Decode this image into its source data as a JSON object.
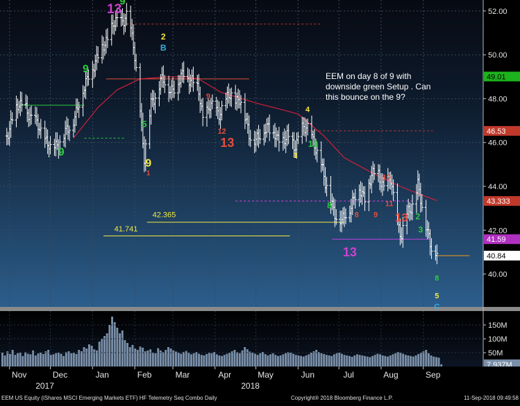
{
  "chart_data": {
    "type": "line",
    "price_panel": {
      "ylim": [
        38.5,
        52.5
      ],
      "y_ticks": [
        "52.00",
        "50.00",
        "48.00",
        "46.00",
        "44.00",
        "42.00",
        "40.00"
      ],
      "grid": true,
      "close_series": [
        {
          "x": "2017-10-30",
          "y": 46.3
        },
        {
          "x": "2017-11-03",
          "y": 47.2
        },
        {
          "x": "2017-11-08",
          "y": 47.6
        },
        {
          "x": "2017-11-13",
          "y": 47.7
        },
        {
          "x": "2017-11-17",
          "y": 47.0
        },
        {
          "x": "2017-11-22",
          "y": 46.8
        },
        {
          "x": "2017-11-27",
          "y": 46.2
        },
        {
          "x": "2017-12-01",
          "y": 45.6
        },
        {
          "x": "2017-12-06",
          "y": 46.0
        },
        {
          "x": "2017-12-11",
          "y": 46.3
        },
        {
          "x": "2017-12-15",
          "y": 46.6
        },
        {
          "x": "2017-12-20",
          "y": 47.5
        },
        {
          "x": "2017-12-26",
          "y": 48.4
        },
        {
          "x": "2017-12-29",
          "y": 49.2
        },
        {
          "x": "2018-01-04",
          "y": 49.7
        },
        {
          "x": "2018-01-10",
          "y": 50.6
        },
        {
          "x": "2018-01-16",
          "y": 51.3
        },
        {
          "x": "2018-01-22",
          "y": 51.6
        },
        {
          "x": "2018-01-26",
          "y": 51.8
        },
        {
          "x": "2018-01-31",
          "y": 50.4
        },
        {
          "x": "2018-02-05",
          "y": 47.6
        },
        {
          "x": "2018-02-08",
          "y": 45.2
        },
        {
          "x": "2018-02-13",
          "y": 47.8
        },
        {
          "x": "2018-02-20",
          "y": 48.8
        },
        {
          "x": "2018-02-27",
          "y": 48.5
        },
        {
          "x": "2018-03-05",
          "y": 48.6
        },
        {
          "x": "2018-03-09",
          "y": 49.2
        },
        {
          "x": "2018-03-14",
          "y": 48.9
        },
        {
          "x": "2018-03-20",
          "y": 48.3
        },
        {
          "x": "2018-03-23",
          "y": 47.2
        },
        {
          "x": "2018-03-28",
          "y": 47.6
        },
        {
          "x": "2018-04-04",
          "y": 47.4
        },
        {
          "x": "2018-04-12",
          "y": 48.1
        },
        {
          "x": "2018-04-19",
          "y": 48.0
        },
        {
          "x": "2018-04-26",
          "y": 46.4
        },
        {
          "x": "2018-05-03",
          "y": 46.1
        },
        {
          "x": "2018-05-10",
          "y": 46.9
        },
        {
          "x": "2018-05-17",
          "y": 46.0
        },
        {
          "x": "2018-05-24",
          "y": 46.4
        },
        {
          "x": "2018-05-29",
          "y": 45.6
        },
        {
          "x": "2018-06-04",
          "y": 46.8
        },
        {
          "x": "2018-06-08",
          "y": 46.5
        },
        {
          "x": "2018-06-13",
          "y": 46.0
        },
        {
          "x": "2018-06-18",
          "y": 45.0
        },
        {
          "x": "2018-06-21",
          "y": 44.0
        },
        {
          "x": "2018-06-26",
          "y": 43.3
        },
        {
          "x": "2018-06-29",
          "y": 42.6
        },
        {
          "x": "2018-07-03",
          "y": 42.3
        },
        {
          "x": "2018-07-06",
          "y": 42.8
        },
        {
          "x": "2018-07-11",
          "y": 43.3
        },
        {
          "x": "2018-07-16",
          "y": 43.8
        },
        {
          "x": "2018-07-20",
          "y": 43.6
        },
        {
          "x": "2018-07-25",
          "y": 44.4
        },
        {
          "x": "2018-07-30",
          "y": 44.6
        },
        {
          "x": "2018-08-03",
          "y": 44.0
        },
        {
          "x": "2018-08-08",
          "y": 44.2
        },
        {
          "x": "2018-08-13",
          "y": 42.5
        },
        {
          "x": "2018-08-16",
          "y": 41.7
        },
        {
          "x": "2018-08-21",
          "y": 42.8
        },
        {
          "x": "2018-08-24",
          "y": 43.2
        },
        {
          "x": "2018-08-28",
          "y": 44.1
        },
        {
          "x": "2018-08-31",
          "y": 42.9
        },
        {
          "x": "2018-09-05",
          "y": 41.8
        },
        {
          "x": "2018-09-07",
          "y": 41.3
        },
        {
          "x": "2018-09-11",
          "y": 40.84
        }
      ],
      "moving_average": [
        {
          "x": "2017-12-18",
          "y": 46.2
        },
        {
          "x": "2018-01-05",
          "y": 47.6
        },
        {
          "x": "2018-01-19",
          "y": 48.4
        },
        {
          "x": "2018-02-05",
          "y": 48.9
        },
        {
          "x": "2018-02-26",
          "y": 49.0
        },
        {
          "x": "2018-03-10",
          "y": 49.0
        },
        {
          "x": "2018-03-20",
          "y": 48.9
        },
        {
          "x": "2018-04-05",
          "y": 48.3
        },
        {
          "x": "2018-05-01",
          "y": 47.8
        },
        {
          "x": "2018-05-20",
          "y": 47.5
        },
        {
          "x": "2018-06-01",
          "y": 47.3
        },
        {
          "x": "2018-06-20",
          "y": 46.3
        },
        {
          "x": "2018-07-05",
          "y": 45.3
        },
        {
          "x": "2018-07-20",
          "y": 44.8
        },
        {
          "x": "2018-08-01",
          "y": 44.4
        },
        {
          "x": "2018-08-15",
          "y": 44.0
        },
        {
          "x": "2018-08-31",
          "y": 43.6
        },
        {
          "x": "2018-09-11",
          "y": 43.35
        }
      ],
      "horizontal_lines": [
        {
          "y": 51.4,
          "x0": "2018-01-26",
          "x1": "2018-06-18",
          "color": "#c0392b",
          "dash": true
        },
        {
          "y": 48.9,
          "x0": "2018-01-11",
          "x1": "2018-04-26",
          "color": "#e74c3c",
          "dash": false
        },
        {
          "y": 47.7,
          "x0": "2017-11-08",
          "x1": "2017-12-26",
          "color": "#2ecc40",
          "dash": false
        },
        {
          "y": 46.2,
          "x0": "2017-12-26",
          "x1": "2018-01-24",
          "color": "#2ecc40",
          "dash": true
        },
        {
          "y": 46.53,
          "x0": "2018-06-04",
          "x1": "2018-09-08",
          "color": "#c0392b",
          "dash": true
        },
        {
          "y": 43.333,
          "x0": "2018-04-16",
          "x1": "2018-08-24",
          "color": "#e040e0",
          "dash": true
        },
        {
          "y": 42.365,
          "x0": "2018-02-10",
          "x1": "2018-07-05",
          "color": "#f4e842",
          "dash": false
        },
        {
          "y": 41.741,
          "x0": "2018-01-09",
          "x1": "2018-05-26",
          "color": "#f4e842",
          "dash": false
        },
        {
          "y": 41.59,
          "x0": "2018-06-26",
          "x1": "2018-09-06",
          "color": "#c040e0",
          "dash": false
        },
        {
          "y": 40.84,
          "x0": "2018-09-11",
          "x1": "2018-10-05",
          "color": "#f39c12",
          "dash": false
        }
      ],
      "level_labels": [
        {
          "text": "42.365",
          "x": "2018-02-14",
          "y": 42.6,
          "color": "#f4e842"
        },
        {
          "text": "41.741",
          "x": "2018-01-17",
          "y": 41.95,
          "color": "#f4e842"
        }
      ],
      "right_price_labels": [
        {
          "text": "49.01",
          "value": 49.01,
          "bg": "#1db31d",
          "fg": "#000000"
        },
        {
          "text": "46.53",
          "value": 46.53,
          "bg": "#c0392b",
          "fg": "#ffffff"
        },
        {
          "text": "43.333",
          "value": 43.333,
          "bg": "#c0392b",
          "fg": "#ffffff"
        },
        {
          "text": "41.59",
          "value": 41.59,
          "bg": "#b030c0",
          "fg": "#ffffff"
        },
        {
          "text": "40.84",
          "value": 40.84,
          "bg": "#ffffff",
          "fg": "#000000"
        }
      ],
      "seq_labels": [
        {
          "text": "13",
          "x": "2018-01-17",
          "y": 51.9,
          "color": "#d040d0",
          "size": 19
        },
        {
          "text": "9",
          "x": "2018-01-23",
          "y": 52.3,
          "color": "#2ecc40",
          "size": 15
        },
        {
          "text": "9",
          "x": "2017-12-27",
          "y": 49.2,
          "color": "#2ecc40",
          "size": 16
        },
        {
          "text": "9",
          "x": "2017-12-09",
          "y": 45.4,
          "color": "#2ecc40",
          "size": 16
        },
        {
          "text": "9",
          "x": "2018-02-11",
          "y": 44.9,
          "color": "#f4e842",
          "size": 16
        },
        {
          "text": "5",
          "x": "2018-02-08",
          "y": 46.7,
          "color": "#2ecc40",
          "size": 13
        },
        {
          "text": "1",
          "x": "2018-02-11",
          "y": 44.5,
          "color": "#e74c3c",
          "size": 10
        },
        {
          "text": "2",
          "x": "2018-02-22",
          "y": 50.7,
          "color": "#f4e842",
          "size": 12
        },
        {
          "text": "B",
          "x": "2018-02-22",
          "y": 50.2,
          "color": "#3ab0e0",
          "size": 12
        },
        {
          "text": "13",
          "x": "2018-04-10",
          "y": 45.8,
          "color": "#e74c3c",
          "size": 18
        },
        {
          "text": "12",
          "x": "2018-04-06",
          "y": 46.4,
          "color": "#e74c3c",
          "size": 11
        },
        {
          "text": "9",
          "x": "2018-03-27",
          "y": 48.0,
          "color": "#e74c3c",
          "size": 11
        },
        {
          "text": "3",
          "x": "2018-05-30",
          "y": 45.3,
          "color": "#f4e842",
          "size": 11
        },
        {
          "text": "4",
          "x": "2018-06-08",
          "y": 47.4,
          "color": "#f4e842",
          "size": 11
        },
        {
          "text": "13",
          "x": "2018-06-12",
          "y": 45.8,
          "color": "#2ecc40",
          "size": 13
        },
        {
          "text": "8",
          "x": "2018-06-24",
          "y": 43.0,
          "color": "#2ecc40",
          "size": 12
        },
        {
          "text": "13",
          "x": "2018-07-09",
          "y": 40.8,
          "color": "#d040d0",
          "size": 18
        },
        {
          "text": "8",
          "x": "2018-07-14",
          "y": 42.6,
          "color": "#e74c3c",
          "size": 11
        },
        {
          "text": "9",
          "x": "2018-07-28",
          "y": 42.6,
          "color": "#e74c3c",
          "size": 11
        },
        {
          "text": "10",
          "x": "2018-08-05",
          "y": 44.3,
          "color": "#e74c3c",
          "size": 11
        },
        {
          "text": "11",
          "x": "2018-08-07",
          "y": 43.1,
          "color": "#e74c3c",
          "size": 11
        },
        {
          "text": "13",
          "x": "2018-08-16",
          "y": 42.4,
          "color": "#e74c3c",
          "size": 17
        },
        {
          "text": "2",
          "x": "2018-08-28",
          "y": 42.5,
          "color": "#2ecc40",
          "size": 12
        },
        {
          "text": "3",
          "x": "2018-08-30",
          "y": 41.9,
          "color": "#2ecc40",
          "size": 12
        },
        {
          "text": "8",
          "x": "2018-09-11",
          "y": 39.7,
          "color": "#2ecc40",
          "size": 11
        },
        {
          "text": "5",
          "x": "2018-09-11",
          "y": 38.9,
          "color": "#f4e842",
          "size": 11
        },
        {
          "text": "C",
          "x": "2018-09-11",
          "y": 38.4,
          "color": "#3ab0e0",
          "size": 11
        }
      ]
    },
    "annotation": "EEM on day 8 of 9 with\ndownside green Setup .  Can\nthis bounce on the 9?",
    "volume_panel": {
      "ylim": [
        0,
        200
      ],
      "y_ticks": [
        "150M",
        "100M",
        "50M"
      ],
      "current_label": "7.937M",
      "values": [
        50,
        40,
        55,
        45,
        60,
        42,
        48,
        50,
        38,
        52,
        46,
        44,
        58,
        40,
        47,
        50,
        45,
        55,
        60,
        42,
        44,
        48,
        50,
        46,
        38,
        52,
        55,
        48,
        50,
        45,
        60,
        55,
        70,
        65,
        80,
        75,
        62,
        58,
        90,
        100,
        110,
        120,
        150,
        180,
        160,
        140,
        120,
        130,
        95,
        85,
        70,
        78,
        65,
        60,
        72,
        68,
        55,
        58,
        62,
        50,
        48,
        66,
        58,
        52,
        60,
        70,
        65,
        58,
        54,
        50,
        46,
        52,
        56,
        50,
        44,
        48,
        52,
        46,
        42,
        40,
        45,
        50,
        48,
        52,
        44,
        40,
        38,
        42,
        46,
        50,
        55,
        60,
        52,
        48,
        58,
        70,
        62,
        54,
        50,
        46,
        42,
        48,
        52,
        45,
        40,
        44,
        48,
        42,
        38,
        40,
        44,
        48,
        52,
        50,
        46,
        42,
        40,
        38,
        36,
        40,
        44,
        50,
        55,
        60,
        52,
        48,
        45,
        42,
        40,
        38,
        44,
        48,
        50,
        46,
        42,
        40,
        38,
        35,
        40,
        44,
        42,
        40,
        38,
        36,
        34,
        38,
        42,
        46,
        44,
        40,
        38,
        36,
        40,
        44,
        48,
        52,
        50,
        46,
        42,
        40,
        38,
        36,
        40,
        45,
        50,
        55,
        60,
        48,
        40,
        36,
        34,
        32,
        8
      ]
    },
    "x_axis": {
      "months": [
        {
          "label": "Nov",
          "date": "2017-11-01"
        },
        {
          "label": "Dec",
          "date": "2017-12-01"
        },
        {
          "label": "Jan",
          "date": "2018-01-01"
        },
        {
          "label": "Feb",
          "date": "2018-02-01"
        },
        {
          "label": "Mar",
          "date": "2018-03-01"
        },
        {
          "label": "Apr",
          "date": "2018-04-01"
        },
        {
          "label": "May",
          "date": "2018-05-01"
        },
        {
          "label": "Jun",
          "date": "2018-06-01"
        },
        {
          "label": "Jul",
          "date": "2018-07-01"
        },
        {
          "label": "Aug",
          "date": "2018-08-01"
        },
        {
          "label": "Sep",
          "date": "2018-09-01"
        }
      ],
      "years": [
        {
          "label": "2017",
          "date": "2017-12-01"
        },
        {
          "label": "2018",
          "date": "2018-05-01"
        }
      ]
    }
  },
  "footer": {
    "left": "EEM US Equity (iShares MSCI Emerging Markets ETF) HF Telemetry Seq Combo  Daily",
    "center": "Copyright® 2018 Bloomberg Finance L.P.",
    "right": "11-Sep-2018 09:49:58"
  },
  "colors": {
    "background_top": "#0b0f1a",
    "background_bottom": "#2a5a86",
    "bars": "#ffffff",
    "moving_average": "#d0203a",
    "volume_bars": "#7a8fa8",
    "annotation": "#ffffff"
  }
}
